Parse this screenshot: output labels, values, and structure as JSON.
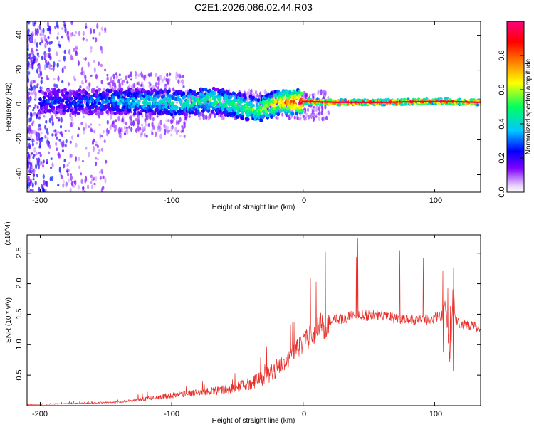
{
  "title": "C2E1.2026.086.02.44.R03",
  "chart_data": [
    {
      "type": "heatmap",
      "name": "spectrogram",
      "xlabel": "Height of straight line (km)",
      "ylabel": "Frequency (Hz)",
      "xlim": [
        -210,
        135
      ],
      "ylim": [
        -50,
        48
      ],
      "xticks": [
        -200,
        -100,
        0,
        100
      ],
      "yticks": [
        -40,
        -20,
        0,
        20,
        40
      ],
      "x_tick_labels": [
        "-200",
        "-100",
        "0",
        "100"
      ],
      "y_tick_labels": [
        "-40",
        "-20",
        "0",
        "20",
        "40"
      ],
      "colorbar": {
        "label": "Normalized spectral amplitude",
        "range": [
          0,
          1
        ],
        "ticks": [
          0,
          0.2,
          0.4,
          0.6,
          0.8
        ],
        "tick_labels": [
          "0.0",
          "0.2",
          "0.4",
          "0.6",
          "0.8"
        ],
        "colors": [
          "#ffffff",
          "#8000ff",
          "#0000ff",
          "#00c8ff",
          "#00ff60",
          "#ffff00",
          "#ff8000",
          "#ff0000",
          "#ff0080"
        ]
      },
      "ridge": {
        "x": [
          -190,
          -160,
          -120,
          -90,
          -70,
          -50,
          -35,
          -20,
          0,
          30,
          60,
          90,
          110,
          135
        ],
        "freq": [
          2,
          2,
          2,
          1,
          3,
          0,
          -3,
          1,
          2,
          1.5,
          1.5,
          2,
          2,
          1.5
        ],
        "amplitude": [
          0.25,
          0.3,
          0.4,
          0.45,
          0.5,
          0.5,
          0.55,
          0.7,
          0.9,
          0.95,
          0.95,
          0.9,
          0.95,
          0.9
        ]
      }
    },
    {
      "type": "line",
      "name": "snr",
      "xlabel": "Height of straight line (km)",
      "ylabel": "SNR (10 * v/v)",
      "y_scale_label": "(x10^4)",
      "color": "#e8302a",
      "xlim": [
        -210,
        135
      ],
      "ylim": [
        0,
        2.8
      ],
      "xticks": [
        -200,
        -100,
        0,
        100
      ],
      "yticks": [
        0.5,
        1.0,
        1.5,
        2.0,
        2.5
      ],
      "x_tick_labels": [
        "-200",
        "-100",
        "0",
        "100"
      ],
      "y_tick_labels": [
        "0.5",
        "1.0",
        "1.5",
        "2.0",
        "2.5"
      ],
      "envelope": {
        "x": [
          -210,
          -170,
          -140,
          -120,
          -100,
          -80,
          -60,
          -40,
          -25,
          -10,
          0,
          10,
          20,
          30,
          40,
          50,
          60,
          70,
          80,
          90,
          100,
          106,
          108,
          110,
          112,
          114,
          116,
          120,
          135
        ],
        "y": [
          0.02,
          0.04,
          0.06,
          0.12,
          0.18,
          0.22,
          0.28,
          0.38,
          0.55,
          0.8,
          1.1,
          1.3,
          1.4,
          1.45,
          1.5,
          1.5,
          1.5,
          1.45,
          1.42,
          1.42,
          1.45,
          1.5,
          1.8,
          1.2,
          0.6,
          2.0,
          1.4,
          1.35,
          1.3
        ]
      }
    }
  ]
}
